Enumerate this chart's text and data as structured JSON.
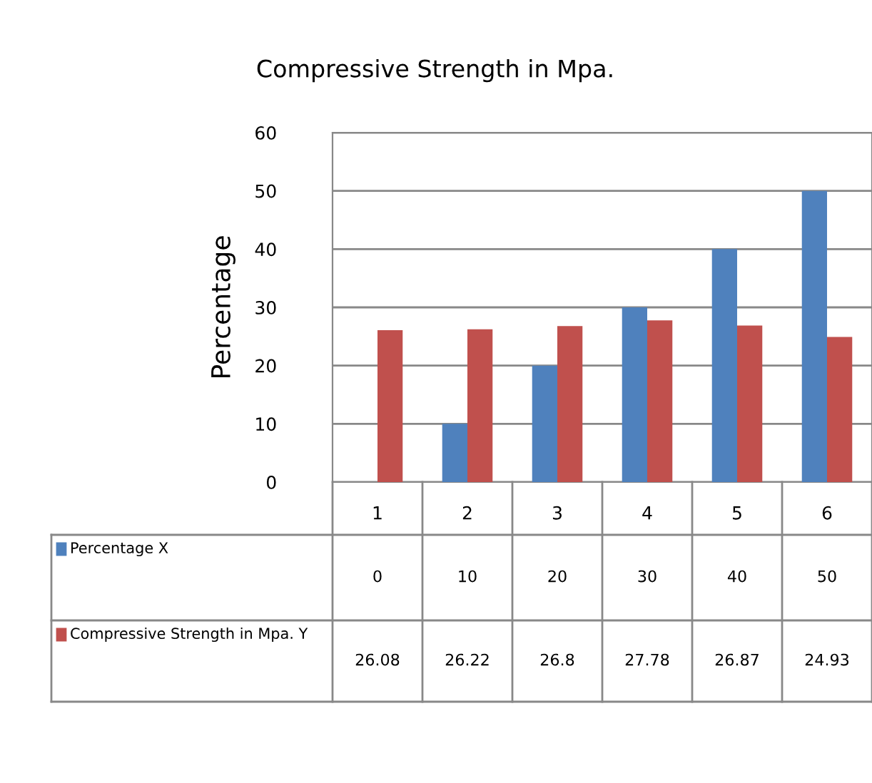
{
  "chart_data": {
    "type": "bar",
    "title": "Compressive Strength in Mpa.",
    "ylabel": "Percentage",
    "categories": [
      "1",
      "2",
      "3",
      "4",
      "5",
      "6"
    ],
    "series": [
      {
        "name": "Percentage X",
        "color": "#4f81bd",
        "values": [
          0,
          10,
          20,
          30,
          40,
          50
        ]
      },
      {
        "name": "Compressive Strength in Mpa. Y",
        "color": "#c0504d",
        "values": [
          26.08,
          26.22,
          26.8,
          27.78,
          26.87,
          24.93
        ]
      }
    ],
    "ylim": [
      0,
      60
    ],
    "yticks": [
      0,
      10,
      20,
      30,
      40,
      50,
      60
    ],
    "grid": "y",
    "data_labels": true,
    "legend": "bottom left"
  }
}
